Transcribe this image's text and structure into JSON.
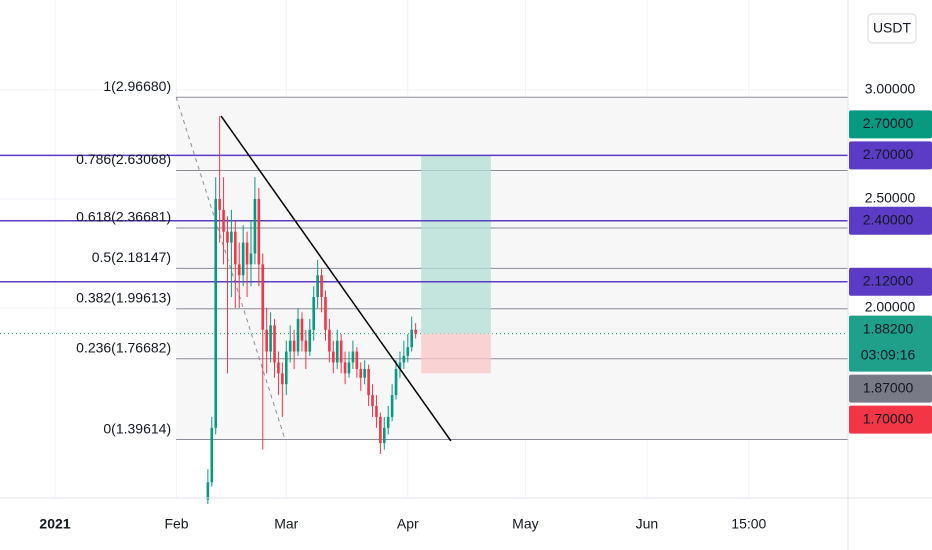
{
  "chart_data": {
    "type": "candlestick",
    "currency": "USDT",
    "xlim": [
      -14.03,
      202.3
    ],
    "ylim": [
      1.128,
      3.413
    ],
    "xticks": [
      {
        "value": 0,
        "label": "2021"
      },
      {
        "value": 31,
        "label": "Feb"
      },
      {
        "value": 59,
        "label": "Mar"
      },
      {
        "value": 90,
        "label": "Apr"
      },
      {
        "value": 120,
        "label": "May"
      },
      {
        "value": 151,
        "label": "Jun"
      },
      {
        "value": 177,
        "label": "15:00"
      }
    ],
    "yticks": [
      {
        "value": 2,
        "label": "2.00000"
      },
      {
        "value": 2.5,
        "label": "2.50000"
      },
      {
        "value": 3,
        "label": "3.00000"
      }
    ],
    "grid": true,
    "up_color": "#089981",
    "down_color": "#f23645",
    "candles": {
      "x": [
        39,
        40,
        41,
        42,
        43,
        44,
        45,
        46,
        47,
        48,
        49,
        50,
        51,
        52,
        53,
        54,
        55,
        56,
        57,
        58,
        59,
        60,
        61,
        62,
        63,
        64,
        65,
        66,
        67,
        68,
        69,
        70,
        71,
        72,
        73,
        74,
        75,
        76,
        77,
        78,
        79,
        80,
        81,
        82,
        83,
        84,
        85,
        86,
        87,
        88,
        89,
        90,
        91,
        92
      ],
      "open": [
        1.12,
        1.2,
        1.45,
        2.5,
        2.45,
        2.35,
        2.3,
        2.35,
        2.2,
        2.15,
        2.3,
        2.2,
        2.25,
        2.5,
        2.2,
        1.9,
        1.8,
        1.92,
        1.75,
        1.7,
        1.65,
        1.8,
        1.85,
        1.8,
        1.95,
        1.85,
        1.8,
        1.9,
        2.05,
        2.15,
        2.05,
        1.9,
        1.8,
        1.75,
        1.85,
        1.75,
        1.7,
        1.75,
        1.8,
        1.72,
        1.68,
        1.72,
        1.6,
        1.55,
        1.5,
        1.38,
        1.45,
        1.5,
        1.6,
        1.72,
        1.75,
        1.78,
        1.82,
        1.9
      ],
      "high": [
        1.26,
        1.5,
        2.6,
        2.88,
        2.6,
        2.42,
        2.45,
        2.4,
        2.3,
        2.38,
        2.35,
        2.4,
        2.6,
        2.55,
        2.25,
        2.0,
        1.98,
        1.95,
        1.8,
        1.75,
        1.85,
        1.92,
        1.9,
        2.0,
        1.98,
        1.9,
        1.95,
        2.1,
        2.22,
        2.18,
        2.08,
        1.95,
        1.85,
        1.9,
        1.88,
        1.8,
        1.8,
        1.85,
        1.82,
        1.75,
        1.76,
        1.74,
        1.65,
        1.6,
        1.52,
        1.5,
        1.55,
        1.65,
        1.76,
        1.8,
        1.85,
        1.88,
        1.96,
        1.93
      ],
      "low": [
        1.1,
        1.18,
        1.42,
        2.3,
        2.2,
        1.7,
        2.05,
        2.0,
        2.0,
        2.1,
        2.05,
        2.1,
        2.2,
        2.1,
        1.35,
        1.7,
        1.75,
        1.68,
        1.6,
        1.5,
        1.6,
        1.75,
        1.72,
        1.78,
        1.8,
        1.72,
        1.78,
        1.85,
        2.0,
        1.98,
        1.85,
        1.75,
        1.7,
        1.72,
        1.7,
        1.65,
        1.68,
        1.72,
        1.68,
        1.62,
        1.65,
        1.55,
        1.5,
        1.45,
        1.33,
        1.35,
        1.42,
        1.48,
        1.58,
        1.68,
        1.72,
        1.75,
        1.8,
        1.86
      ],
      "close": [
        1.2,
        1.45,
        2.5,
        2.45,
        2.35,
        2.3,
        2.35,
        2.2,
        2.15,
        2.3,
        2.2,
        2.25,
        2.5,
        2.2,
        1.9,
        1.8,
        1.92,
        1.75,
        1.7,
        1.65,
        1.8,
        1.85,
        1.8,
        1.95,
        1.85,
        1.8,
        1.9,
        2.05,
        2.15,
        2.05,
        1.9,
        1.8,
        1.75,
        1.85,
        1.75,
        1.7,
        1.75,
        1.8,
        1.72,
        1.68,
        1.72,
        1.6,
        1.55,
        1.5,
        1.38,
        1.45,
        1.5,
        1.6,
        1.72,
        1.75,
        1.78,
        1.82,
        1.9,
        1.882
      ]
    },
    "fib": {
      "color": "#8a8d96",
      "x_start": 30.9,
      "levels": [
        {
          "value": 2.9668,
          "label": "1(2.96680)"
        },
        {
          "value": 2.63068,
          "label": "0.786(2.63068)"
        },
        {
          "value": 2.36681,
          "label": "0.618(2.36681)"
        },
        {
          "value": 2.18147,
          "label": "0.5(2.18147)"
        },
        {
          "value": 1.99613,
          "label": "0.382(1.99613)"
        },
        {
          "value": 1.76682,
          "label": "0.236(1.76682)"
        },
        {
          "value": 1.39614,
          "label": "0(1.39614)"
        }
      ],
      "diagonal": {
        "x": [
          30.9,
          58.7
        ],
        "y": [
          2.9668,
          1.39614
        ]
      }
    },
    "hlines": {
      "color": "#5b3cc4",
      "values": [
        2.7,
        2.4,
        2.12
      ]
    },
    "trendline": {
      "color": "#000000",
      "x": [
        42.35,
        101
      ],
      "y": [
        2.881,
        1.39
      ]
    },
    "position": {
      "x": [
        93.4,
        111.2
      ],
      "entry": 1.882,
      "target": 2.7,
      "stop": 1.7,
      "target_color": "#b2dfd6",
      "stop_color": "#f9c6c8"
    },
    "price_labels": [
      {
        "value": 2.7,
        "label": "2.70000",
        "color": "#089981"
      },
      {
        "value": 2.7,
        "label": "2.70000",
        "color": "#5b3cc4"
      },
      {
        "value": 2.4,
        "label": "2.40000",
        "color": "#5b3cc4"
      },
      {
        "value": 2.12,
        "label": "2.12000",
        "color": "#5b3cc4"
      },
      {
        "value": 1.882,
        "label": "1.88200",
        "color": "#1ea08a",
        "countdown": "03:09:16"
      },
      {
        "value": 1.87,
        "label": "1.87000",
        "color": "#787b86"
      },
      {
        "value": 1.7,
        "label": "1.70000",
        "color": "#f23645"
      }
    ]
  }
}
